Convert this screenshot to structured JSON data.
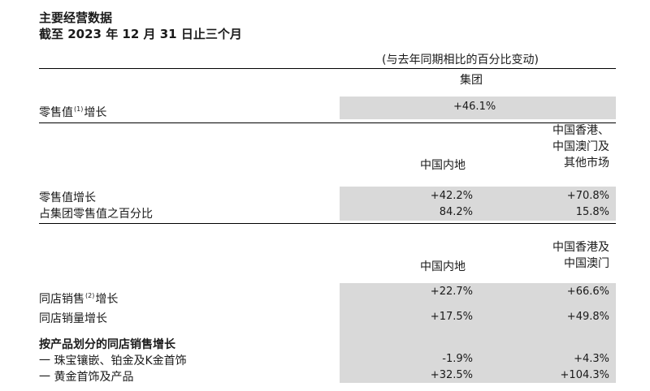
{
  "title": "主要经营数据",
  "subtitle": "截至 2023 年 12 月 31 日止三个月",
  "change_note": "(与去年同期相比的百分比变动)",
  "group_header": "集团",
  "group_retail": {
    "label_main": "零售值",
    "label_sup": "(1)",
    "label_tail": "增长",
    "value": "+46.1%"
  },
  "section1": {
    "col1": "中国内地",
    "col2_lines": [
      "中国香港、",
      "中国澳门及",
      "其他市场"
    ],
    "rows": [
      {
        "label": "零售值增长",
        "v1": "+42.2%",
        "v2": "+70.8%"
      },
      {
        "label": "占集团零售值之百分比",
        "v1": "84.2%",
        "v2": "15.8%"
      }
    ]
  },
  "section2": {
    "col1": "中国内地",
    "col2_lines": [
      "中国香港及",
      "中国澳门"
    ],
    "sss_label_main": "同店销售",
    "sss_label_sup": "(2)",
    "sss_label_tail": "增长",
    "sss_v1": "+22.7%",
    "sss_v2": "+66.6%",
    "ssv_label": "同店销量增长",
    "ssv_v1": "+17.5%",
    "ssv_v2": "+49.8%",
    "by_product_header": "按产品划分的同店销售增长",
    "products": [
      {
        "label": "一 珠宝镶嵌、铂金及K金首饰",
        "v1": "-1.9%",
        "v2": "+4.3%"
      },
      {
        "label": "一 黄金首饰及产品",
        "v1": "+32.5%",
        "v2": "+104.3%"
      }
    ]
  }
}
